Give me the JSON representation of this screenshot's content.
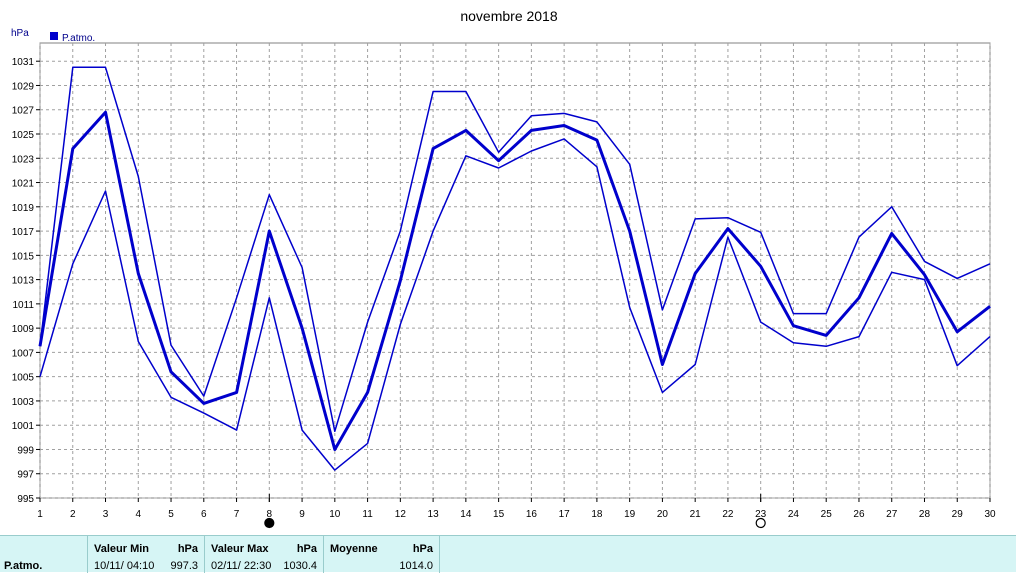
{
  "chart_data": {
    "type": "line",
    "title": "novembre 2018",
    "ylabel": "hPa",
    "legend": {
      "label": "P.atmo.",
      "position": "top-left",
      "color": "#0000cc"
    },
    "ylim": [
      995,
      1032.5
    ],
    "yticks": [
      995,
      997,
      999,
      1001,
      1003,
      1005,
      1007,
      1009,
      1011,
      1013,
      1015,
      1017,
      1019,
      1021,
      1023,
      1025,
      1027,
      1029,
      1031
    ],
    "x": [
      1,
      2,
      3,
      4,
      5,
      6,
      7,
      8,
      9,
      10,
      11,
      12,
      13,
      14,
      15,
      16,
      17,
      18,
      19,
      20,
      21,
      22,
      23,
      24,
      25,
      26,
      27,
      28,
      29,
      30
    ],
    "grid": true,
    "series": [
      {
        "role": "max",
        "values": [
          1007.5,
          1030.5,
          1030.5,
          1021.5,
          1007.6,
          1003.4,
          1011.5,
          1020.0,
          1014.0,
          1000.5,
          1009.5,
          1017.0,
          1028.5,
          1028.5,
          1023.5,
          1026.5,
          1026.7,
          1026.0,
          1022.5,
          1010.5,
          1018.0,
          1018.1,
          1016.9,
          1010.2,
          1010.2,
          1016.5,
          1019.0,
          1014.5,
          1013.1,
          1014.3
        ]
      },
      {
        "role": "mean",
        "values": [
          1007.5,
          1023.8,
          1026.8,
          1013.5,
          1005.4,
          1002.8,
          1003.7,
          1017.0,
          1009.0,
          999.0,
          1003.7,
          1012.9,
          1023.8,
          1025.3,
          1022.8,
          1025.3,
          1025.7,
          1024.5,
          1017.0,
          1006.0,
          1013.5,
          1017.2,
          1014.1,
          1009.2,
          1008.4,
          1011.5,
          1016.8,
          1013.4,
          1008.7,
          1010.8
        ]
      },
      {
        "role": "min",
        "values": [
          1005.0,
          1014.3,
          1020.3,
          1007.9,
          1003.3,
          1002.0,
          1000.6,
          1011.5,
          1000.6,
          997.3,
          999.5,
          1009.3,
          1017.0,
          1023.2,
          1022.2,
          1023.6,
          1024.6,
          1022.3,
          1010.7,
          1003.7,
          1006.0,
          1016.5,
          1009.5,
          1007.8,
          1007.5,
          1008.3,
          1013.6,
          1013.0,
          1005.9,
          1008.3
        ]
      }
    ],
    "moon_markers": [
      {
        "day": 8,
        "phase": "new-moon"
      },
      {
        "day": 23,
        "phase": "full-moon"
      }
    ]
  },
  "summary": {
    "row_label": "P.atmo.",
    "min": {
      "header": "Valeur Min",
      "unit": "hPa",
      "datetime": "10/11/  04:10",
      "value": "997.3"
    },
    "max": {
      "header": "Valeur Max",
      "unit": "hPa",
      "datetime": "02/11/  22:30",
      "value": "1030.4"
    },
    "mean": {
      "header": "Moyenne",
      "unit": "hPa",
      "value": "1014.0"
    }
  }
}
